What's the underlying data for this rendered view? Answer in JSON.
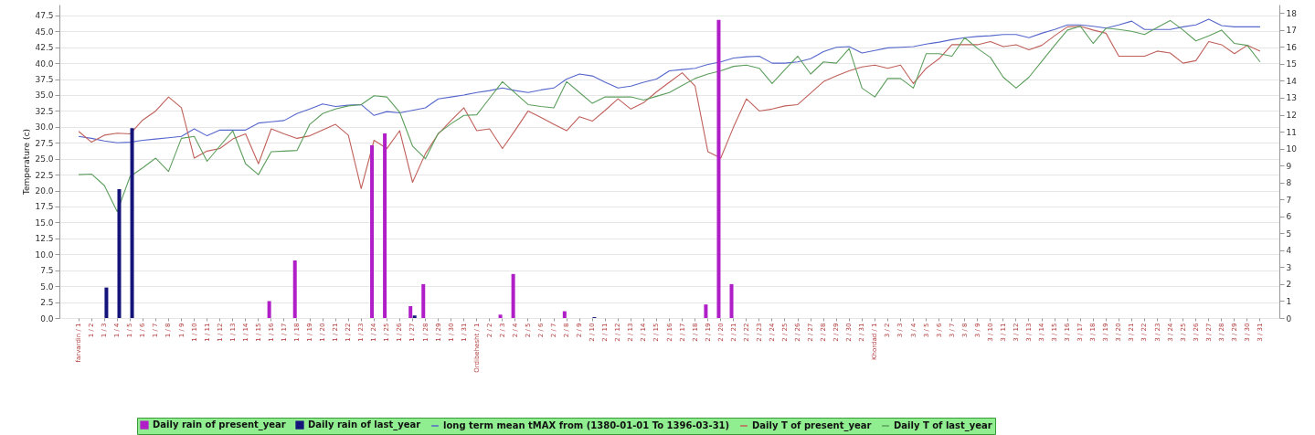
{
  "chart_data": {
    "type": "bar",
    "ylabel": "Temperature (c)",
    "grid": "y",
    "legend": "bottom",
    "categories": [
      "farvardin / 1",
      "1 / 2",
      "1 / 3",
      "1 / 4",
      "1 / 5",
      "1 / 6",
      "1 / 7",
      "1 / 8",
      "1 / 9",
      "1 / 10",
      "1 / 11",
      "1 / 12",
      "1 / 13",
      "1 / 14",
      "1 / 15",
      "1 / 16",
      "1 / 17",
      "1 / 18",
      "1 / 19",
      "1 / 20",
      "1 / 21",
      "1 / 22",
      "1 / 23",
      "1 / 24",
      "1 / 25",
      "1 / 26",
      "1 / 27",
      "1 / 28",
      "1 / 29",
      "1 / 30",
      "1 / 31",
      "Ordibehesht / 1",
      "2 / 2",
      "2 / 3",
      "2 / 4",
      "2 / 5",
      "2 / 6",
      "2 / 7",
      "2 / 8",
      "2 / 9",
      "2 / 10",
      "2 / 11",
      "2 / 12",
      "2 / 13",
      "2 / 14",
      "2 / 15",
      "2 / 16",
      "2 / 17",
      "2 / 18",
      "2 / 19",
      "2 / 20",
      "2 / 21",
      "2 / 22",
      "2 / 23",
      "2 / 24",
      "2 / 25",
      "2 / 26",
      "2 / 27",
      "2 / 28",
      "2 / 29",
      "2 / 30",
      "2 / 31",
      "Khordad / 1",
      "3 / 2",
      "3 / 3",
      "3 / 4",
      "3 / 5",
      "3 / 6",
      "3 / 7",
      "3 / 8",
      "3 / 9",
      "3 / 10",
      "3 / 11",
      "3 / 12",
      "3 / 13",
      "3 / 14",
      "3 / 15",
      "3 / 16",
      "3 / 17",
      "3 / 18",
      "3 / 19",
      "3 / 20",
      "3 / 21",
      "3 / 22",
      "3 / 23",
      "3 / 24",
      "3 / 25",
      "3 / 26",
      "3 / 27",
      "3 / 28",
      "3 / 29",
      "3 / 30",
      "3 / 31"
    ],
    "ylim": [
      0,
      49.2
    ],
    "yticks": [
      {
        "value": 0,
        "label": "0.0"
      },
      2.5,
      {
        "value": 5,
        "label": "5.0"
      },
      7.5,
      {
        "value": 10,
        "label": "10.0"
      },
      12.5,
      {
        "value": 15,
        "label": "15.0"
      },
      17.5,
      {
        "value": 20,
        "label": "20.0"
      },
      22.5,
      {
        "value": 25,
        "label": "25.0"
      },
      27.5,
      {
        "value": 30,
        "label": "30.0"
      },
      32.5,
      {
        "value": 35,
        "label": "35.0"
      },
      37.5,
      {
        "value": 40,
        "label": "40.0"
      },
      42.5,
      {
        "value": 45,
        "label": "45.0"
      },
      47.5
    ],
    "y2lim": [
      0,
      18.5
    ],
    "y2ticks": [
      0,
      1,
      2,
      3,
      4,
      5,
      6,
      7,
      8,
      9,
      10,
      11,
      12,
      13,
      14,
      15,
      16,
      17,
      18
    ],
    "series": [
      {
        "name": "Daily rain of present_year",
        "axis": "y2",
        "color": "#b01ec8",
        "values": [
          null,
          null,
          null,
          null,
          null,
          null,
          null,
          null,
          null,
          null,
          null,
          null,
          null,
          null,
          null,
          1.0,
          null,
          3.4,
          null,
          null,
          null,
          null,
          null,
          10.2,
          10.9,
          null,
          0.7,
          2.0,
          null,
          null,
          null,
          null,
          null,
          0.2,
          2.6,
          null,
          null,
          null,
          0.4,
          null,
          null,
          null,
          null,
          null,
          null,
          null,
          null,
          null,
          null,
          0.8,
          17.6,
          2.0,
          null,
          null,
          null,
          null,
          null,
          null,
          null,
          null,
          null,
          null,
          null,
          null,
          null,
          null,
          null,
          null,
          null,
          null,
          null,
          null,
          null,
          null,
          null,
          null,
          null,
          null,
          null,
          null,
          null,
          null,
          null,
          null,
          null,
          null,
          null,
          null,
          null,
          null,
          null,
          null,
          null
        ]
      },
      {
        "name": "Daily rain of last_year",
        "axis": "y2",
        "color": "#14147a",
        "values": [
          null,
          null,
          1.8,
          7.6,
          11.2,
          null,
          null,
          null,
          null,
          null,
          null,
          null,
          null,
          null,
          null,
          null,
          null,
          null,
          null,
          null,
          null,
          null,
          null,
          null,
          null,
          null,
          0.15,
          null,
          null,
          null,
          null,
          null,
          null,
          null,
          null,
          null,
          null,
          null,
          null,
          null,
          0.05,
          null,
          null,
          null,
          null,
          null,
          null,
          null,
          null,
          null,
          null,
          null,
          null,
          null,
          null,
          null,
          null,
          null,
          null,
          null,
          null,
          null,
          null,
          null,
          null,
          null,
          null,
          null,
          null,
          null,
          null,
          null,
          null,
          null,
          null,
          null,
          null,
          null,
          null,
          null,
          null,
          null,
          null,
          null,
          null,
          null,
          null,
          null,
          null,
          null,
          null,
          null,
          null
        ]
      },
      {
        "name": "long term mean tMAX from (1380-01-01 To 1396-03-31)",
        "type": "line",
        "color": "#5566cc",
        "values": [
          28.5,
          28.2,
          27.8,
          27.5,
          27.6,
          27.9,
          28.1,
          28.3,
          28.5,
          29.7,
          28.6,
          29.5,
          29.5,
          29.5,
          30.6,
          30.8,
          31.0,
          32.1,
          32.8,
          33.6,
          33.2,
          33.4,
          33.5,
          31.8,
          32.4,
          32.2,
          32.6,
          33.0,
          34.4,
          34.7,
          35.0,
          35.4,
          35.7,
          36.1,
          35.7,
          35.4,
          35.8,
          36.1,
          37.5,
          38.3,
          38.0,
          37.0,
          36.1,
          36.4,
          37.0,
          37.5,
          38.8,
          39.0,
          39.2,
          39.8,
          40.2,
          40.8,
          41.0,
          41.1,
          40.0,
          40.0,
          40.2,
          40.7,
          41.8,
          42.5,
          42.6,
          41.6,
          42.0,
          42.4,
          42.5,
          42.6,
          43.0,
          43.3,
          43.7,
          44.0,
          44.2,
          44.3,
          44.5,
          44.5,
          44.0,
          44.7,
          45.3,
          46.0,
          46.0,
          45.8,
          45.5,
          46.0,
          46.6,
          45.3,
          45.3,
          45.3,
          45.7,
          46.0,
          46.9,
          45.9,
          45.7,
          45.7,
          45.7
        ]
      },
      {
        "name": "Daily T of present_year",
        "type": "line",
        "color": "#c0605a",
        "values": [
          29.3,
          27.6,
          28.7,
          29.0,
          28.9,
          31.1,
          32.5,
          34.7,
          33.0,
          25.1,
          26.2,
          26.6,
          28.1,
          28.9,
          24.2,
          29.7,
          28.9,
          28.2,
          28.6,
          29.5,
          30.4,
          28.7,
          20.3,
          27.9,
          26.6,
          29.4,
          21.3,
          25.8,
          28.9,
          31.0,
          33.0,
          29.4,
          29.7,
          26.6,
          29.5,
          32.5,
          31.5,
          30.4,
          29.4,
          31.6,
          30.9,
          32.6,
          34.4,
          32.8,
          33.8,
          35.5,
          37.0,
          38.5,
          36.4,
          26.1,
          25.1,
          30.0,
          34.4,
          32.5,
          32.8,
          33.3,
          33.5,
          35.3,
          37.1,
          38.0,
          38.8,
          39.4,
          39.7,
          39.2,
          39.7,
          36.8,
          39.2,
          40.7,
          42.9,
          42.9,
          42.9,
          43.4,
          42.6,
          42.9,
          42.1,
          42.8,
          44.3,
          45.7,
          45.8,
          45.2,
          44.7,
          41.1,
          41.1,
          41.1,
          41.9,
          41.6,
          40.0,
          40.4,
          43.4,
          42.9,
          41.5,
          42.8,
          41.9
        ]
      },
      {
        "name": "Daily T of last_year",
        "type": "line",
        "color": "#5c9e5c",
        "values": [
          22.5,
          22.6,
          20.8,
          16.7,
          22.2,
          23.6,
          25.1,
          23.0,
          28.2,
          28.5,
          24.6,
          27.0,
          29.4,
          24.2,
          22.5,
          26.1,
          26.2,
          26.3,
          30.4,
          32.1,
          32.8,
          33.3,
          33.5,
          34.9,
          34.7,
          32.3,
          27.0,
          25.0,
          29.0,
          30.5,
          31.8,
          31.9,
          34.5,
          37.1,
          35.3,
          33.5,
          33.2,
          33.0,
          37.1,
          35.4,
          33.7,
          34.7,
          34.7,
          34.7,
          34.2,
          34.8,
          35.4,
          36.5,
          37.6,
          38.3,
          38.8,
          39.5,
          39.7,
          39.2,
          36.8,
          39.0,
          41.1,
          38.3,
          40.2,
          40.0,
          42.3,
          36.1,
          34.7,
          37.6,
          37.6,
          36.1,
          41.5,
          41.5,
          41.1,
          44.0,
          42.3,
          40.9,
          37.8,
          36.1,
          37.8,
          40.3,
          42.8,
          45.2,
          45.8,
          43.1,
          45.5,
          45.3,
          45.0,
          44.5,
          45.6,
          46.7,
          45.2,
          43.5,
          44.3,
          45.2,
          43.1,
          42.8,
          40.2
        ]
      }
    ]
  }
}
